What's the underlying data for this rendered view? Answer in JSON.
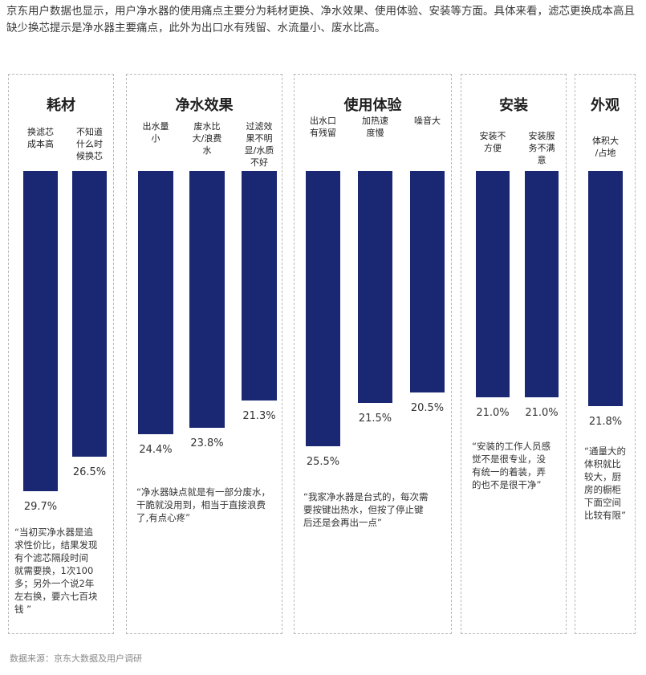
{
  "intro_text": "京东用户数据也显示，用户净水器的使用痛点主要分为耗材更换、净水效果、使用体验、安装等方面。具体来看，滤芯更换成本高且缺少换芯提示是净水器主要痛点，此外为出口水有残留、水流量小、废水比高。",
  "source_text": "数据来源：京东大数据及用户调研",
  "chart_data": {
    "type": "bar",
    "unit": "%",
    "bar_color": "#1a2772",
    "groups": [
      {
        "name": "耗材",
        "categories": [
          "换滤芯\n成本高",
          "不知道\n什么时\n候换芯"
        ],
        "values": [
          29.7,
          26.5
        ],
        "value_labels": [
          "29.7%",
          "26.5%"
        ],
        "quote": "“当初买净水器是追\n求性价比，结果发现\n有个滤芯隔段时间\n就需要换，1次100\n多；另外一个说2年\n左右换，要六七百块\n钱                     ”"
      },
      {
        "name": "净水效果",
        "categories": [
          "出水量\n小",
          "废水比\n大/浪费\n水",
          "过滤效\n果不明\n显/水质\n不好"
        ],
        "values": [
          24.4,
          23.8,
          21.3
        ],
        "value_labels": [
          "24.4%",
          "23.8%",
          "21.3%"
        ],
        "quote": "“净水器缺点就是有一部分废水，\n干脆就没用到，相当于直接浪费\n了,有点心疼”"
      },
      {
        "name": "使用体验",
        "categories": [
          "出水口\n有残留",
          "加热速\n度慢",
          "噪音大"
        ],
        "values": [
          25.5,
          21.5,
          20.5
        ],
        "value_labels": [
          "25.5%",
          "21.5%",
          "20.5%"
        ],
        "quote": "“我家净水器是台式的，每次需\n要按键出热水，但按了停止键\n后还是会再出一点”"
      },
      {
        "name": "安装",
        "categories": [
          "安装不\n方便",
          "安装服\n务不满\n意"
        ],
        "values": [
          21.0,
          21.0
        ],
        "value_labels": [
          "21.0%",
          "21.0%"
        ],
        "quote": "“安装的工作人员感\n觉不是很专业，没\n有统一的着装，弄\n的也不是很干净”"
      },
      {
        "name": "外观",
        "categories": [
          "体积大\n/占地"
        ],
        "values": [
          21.8
        ],
        "value_labels": [
          "21.8%"
        ],
        "quote": "“通量大的\n体积就比\n较大，厨\n房的橱柜\n下面空间\n比较有限”"
      }
    ]
  }
}
